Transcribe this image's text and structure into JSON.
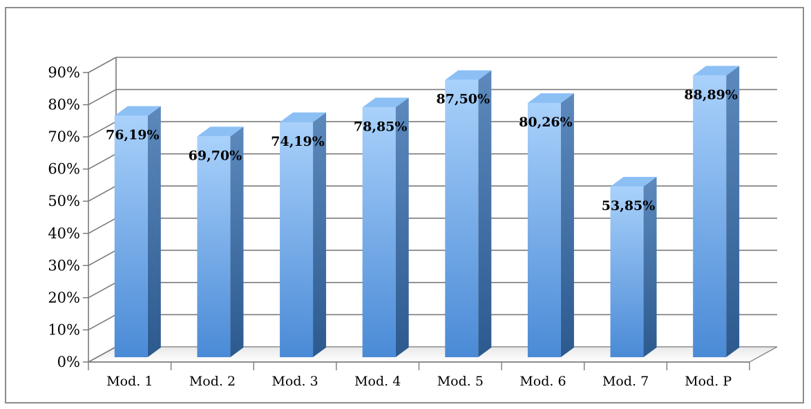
{
  "chart_data": {
    "type": "bar",
    "three_d": true,
    "categories": [
      "Mod. 1",
      "Mod. 2",
      "Mod. 3",
      "Mod. 4",
      "Mod. 5",
      "Mod. 6",
      "Mod. 7",
      "Mod. P"
    ],
    "values": [
      76.19,
      69.7,
      74.19,
      78.85,
      87.5,
      80.26,
      53.85,
      88.89
    ],
    "data_labels": [
      "76,19%",
      "69,70%",
      "74,19%",
      "78,85%",
      "87,50%",
      "80,26%",
      "53,85%",
      "88,89%"
    ],
    "yticks": [
      "0%",
      "10%",
      "20%",
      "30%",
      "40%",
      "50%",
      "60%",
      "70%",
      "80%",
      "90%"
    ],
    "ylim": [
      0,
      90
    ],
    "grid": true,
    "legend": "none",
    "bar_color": "#5a9de6",
    "bar_side_color": "#2f5f96",
    "bar_top_color": "#8cc0f5"
  }
}
